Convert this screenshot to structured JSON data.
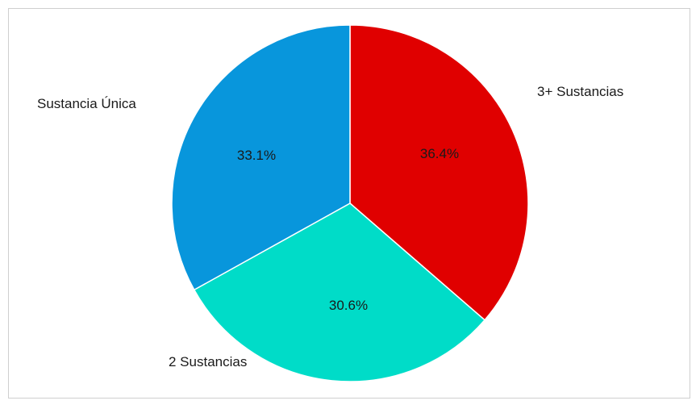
{
  "chart_data": {
    "type": "pie",
    "slices": [
      {
        "label": "3+ Sustancias",
        "value": 36.4,
        "value_label": "36.4%",
        "color": "#e00000"
      },
      {
        "label": "2 Sustancias",
        "value": 30.6,
        "value_label": "30.6%",
        "color": "#00dcc8"
      },
      {
        "label": "Sustancia Única",
        "value": 33.1,
        "value_label": "33.1%",
        "color": "#0896dc"
      }
    ],
    "start_angle_deg": 0,
    "direction": "clockwise",
    "legend": "none",
    "labels": "outside-category-inside-percent"
  }
}
